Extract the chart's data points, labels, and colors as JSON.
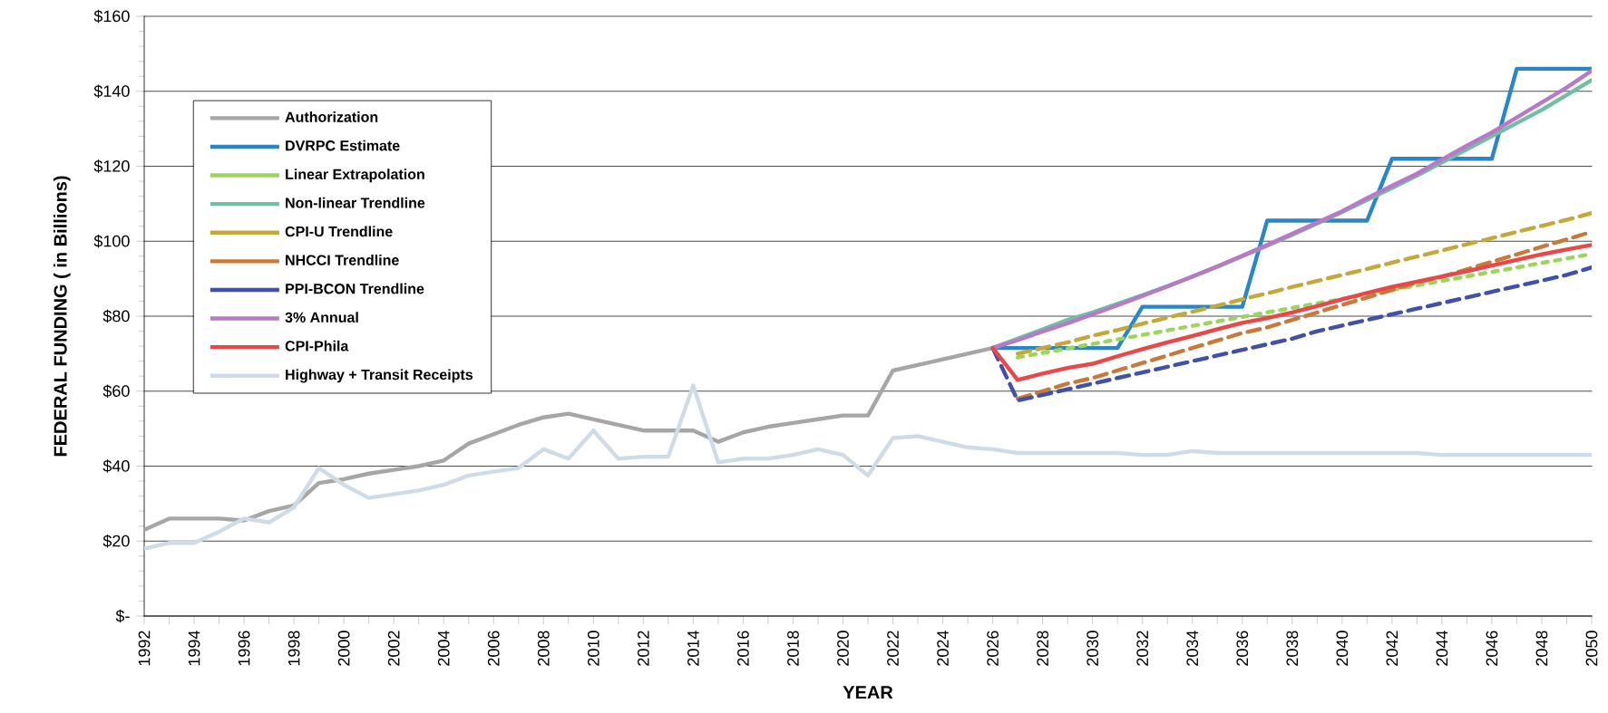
{
  "chart_data": {
    "type": "line",
    "xlabel": "YEAR",
    "ylabel": "FEDERAL FUNDING ( in Billions)",
    "x": [
      1992,
      1993,
      1994,
      1995,
      1996,
      1997,
      1998,
      1999,
      2000,
      2001,
      2002,
      2003,
      2004,
      2005,
      2006,
      2007,
      2008,
      2009,
      2010,
      2011,
      2012,
      2013,
      2014,
      2015,
      2016,
      2017,
      2018,
      2019,
      2020,
      2021,
      2022,
      2023,
      2024,
      2025,
      2026,
      2027,
      2028,
      2029,
      2030,
      2031,
      2032,
      2033,
      2034,
      2035,
      2036,
      2037,
      2038,
      2039,
      2040,
      2041,
      2042,
      2043,
      2044,
      2045,
      2046,
      2047,
      2048,
      2049,
      2050
    ],
    "xlim": [
      1992,
      2050
    ],
    "xticks": [
      1992,
      {
        "value": 1993,
        "label": null
      },
      1994,
      {
        "value": 1995,
        "label": null
      },
      1996,
      {
        "value": 1997,
        "label": null
      },
      1998,
      {
        "value": 1999,
        "label": null
      },
      2000,
      {
        "value": 2001,
        "label": null
      },
      2002,
      {
        "value": 2003,
        "label": null
      },
      2004,
      {
        "value": 2005,
        "label": null
      },
      2006,
      {
        "value": 2007,
        "label": null
      },
      2008,
      {
        "value": 2009,
        "label": null
      },
      2010,
      {
        "value": 2011,
        "label": null
      },
      2012,
      {
        "value": 2013,
        "label": null
      },
      2014,
      {
        "value": 2015,
        "label": null
      },
      2016,
      {
        "value": 2017,
        "label": null
      },
      2018,
      {
        "value": 2019,
        "label": null
      },
      2020,
      {
        "value": 2021,
        "label": null
      },
      2022,
      {
        "value": 2023,
        "label": null
      },
      2024,
      {
        "value": 2025,
        "label": null
      },
      2026,
      {
        "value": 2027,
        "label": null
      },
      2028,
      {
        "value": 2029,
        "label": null
      },
      2030,
      {
        "value": 2031,
        "label": null
      },
      2032,
      {
        "value": 2033,
        "label": null
      },
      2034,
      {
        "value": 2035,
        "label": null
      },
      2036,
      {
        "value": 2037,
        "label": null
      },
      2038,
      {
        "value": 2039,
        "label": null
      },
      2040,
      {
        "value": 2041,
        "label": null
      },
      2042,
      {
        "value": 2043,
        "label": null
      },
      2044,
      {
        "value": 2045,
        "label": null
      },
      2046,
      {
        "value": 2047,
        "label": null
      },
      2048,
      {
        "value": 2049,
        "label": null
      },
      2050
    ],
    "ylim": [
      0,
      160
    ],
    "yticks": [
      {
        "value": 0,
        "label": "$-"
      },
      {
        "value": 20,
        "label": "$20"
      },
      {
        "value": 40,
        "label": "$40"
      },
      {
        "value": 60,
        "label": "$60"
      },
      {
        "value": 80,
        "label": "$80"
      },
      {
        "value": 100,
        "label": "$100"
      },
      {
        "value": 120,
        "label": "$120"
      },
      {
        "value": 140,
        "label": "$140"
      },
      {
        "value": 160,
        "label": "$160"
      }
    ],
    "grid": "y",
    "legend": "top left",
    "series": [
      {
        "name": "Authorization",
        "color": "#a6a6a6",
        "line_style": "solid",
        "values": [
          23,
          26,
          26,
          26,
          25.5,
          28,
          29.5,
          35.5,
          36.5,
          38,
          39,
          40,
          41.5,
          46,
          48.5,
          51,
          53,
          54,
          52.5,
          51,
          49.5,
          49.5,
          49.5,
          46.5,
          49,
          50.5,
          51.5,
          52.5,
          53.5,
          53.5,
          65.5,
          67,
          68.5,
          70,
          71.5,
          null,
          null,
          null,
          null,
          null,
          null,
          null,
          null,
          null,
          null,
          null,
          null,
          null,
          null,
          null,
          null,
          null,
          null,
          null,
          null,
          null,
          null,
          null,
          null
        ]
      },
      {
        "name": "DVRPC Estimate",
        "color": "#2986c8",
        "line_style": "solid",
        "values": [
          null,
          null,
          null,
          null,
          null,
          null,
          null,
          null,
          null,
          null,
          null,
          null,
          null,
          null,
          null,
          null,
          null,
          null,
          null,
          null,
          null,
          null,
          null,
          null,
          null,
          null,
          null,
          null,
          null,
          null,
          null,
          null,
          null,
          null,
          71.5,
          71.5,
          71.5,
          71.5,
          71.5,
          71.5,
          82.5,
          82.5,
          82.5,
          82.5,
          82.5,
          105.5,
          105.5,
          105.5,
          105.5,
          105.5,
          122,
          122,
          122,
          122,
          122,
          146,
          146,
          146,
          146
        ]
      },
      {
        "name": "Linear Extrapolation",
        "color": "#9bd65a",
        "line_style": "dotted",
        "values": [
          null,
          null,
          null,
          null,
          null,
          null,
          null,
          null,
          null,
          null,
          null,
          null,
          null,
          null,
          null,
          null,
          null,
          null,
          null,
          null,
          null,
          null,
          null,
          null,
          null,
          null,
          null,
          null,
          null,
          null,
          null,
          null,
          null,
          null,
          null,
          69,
          70.2,
          71.4,
          72.6,
          73.8,
          75,
          76.2,
          77.4,
          78.6,
          79.8,
          81,
          82.2,
          83.4,
          84.6,
          85.8,
          87,
          88.2,
          89.4,
          90.6,
          91.8,
          93,
          94.2,
          95.4,
          96.6
        ]
      },
      {
        "name": "Non-linear Trendline",
        "color": "#6fbfa0",
        "line_style": "solid",
        "values": [
          null,
          null,
          null,
          null,
          null,
          null,
          null,
          null,
          null,
          null,
          null,
          null,
          null,
          null,
          null,
          null,
          null,
          null,
          null,
          null,
          null,
          null,
          null,
          null,
          null,
          null,
          null,
          null,
          null,
          null,
          null,
          null,
          null,
          null,
          71.5,
          74,
          76.5,
          79,
          81,
          83.3,
          85.6,
          88,
          90.5,
          93.2,
          96,
          98.8,
          101.7,
          104.7,
          107.8,
          111,
          114.2,
          117.5,
          121,
          124.5,
          128,
          131.5,
          135,
          139,
          143
        ]
      },
      {
        "name": "CPI-U Trendline",
        "color": "#c4a83a",
        "line_style": "dashed",
        "values": [
          null,
          null,
          null,
          null,
          null,
          null,
          null,
          null,
          null,
          null,
          null,
          null,
          null,
          null,
          null,
          null,
          null,
          null,
          null,
          null,
          null,
          null,
          null,
          null,
          null,
          null,
          null,
          null,
          null,
          null,
          null,
          null,
          null,
          null,
          null,
          70,
          71.5,
          73,
          74.8,
          76.3,
          78,
          79.6,
          81.2,
          82.8,
          84.5,
          86.1,
          87.8,
          89.4,
          91,
          92.6,
          94.3,
          95.9,
          97.5,
          99.2,
          100.8,
          102.5,
          104.1,
          105.7,
          107.5
        ]
      },
      {
        "name": "NHCCI Trendline",
        "color": "#c87a3c",
        "line_style": "dashed",
        "values": [
          null,
          null,
          null,
          null,
          null,
          null,
          null,
          null,
          null,
          null,
          null,
          null,
          null,
          null,
          null,
          null,
          null,
          null,
          null,
          null,
          null,
          null,
          null,
          null,
          null,
          null,
          null,
          null,
          null,
          null,
          null,
          null,
          null,
          null,
          null,
          58,
          60,
          62,
          63.5,
          65.5,
          67.5,
          69.5,
          71.5,
          73.5,
          75.5,
          77,
          79,
          81,
          83,
          85,
          87,
          89,
          90.5,
          92.5,
          94.5,
          96.5,
          98.5,
          100.5,
          102.5
        ]
      },
      {
        "name": "PPI-BCON Trendline",
        "color": "#4150a8",
        "line_style": "dashed",
        "values": [
          null,
          null,
          null,
          null,
          null,
          null,
          null,
          null,
          null,
          null,
          null,
          null,
          null,
          null,
          null,
          null,
          null,
          null,
          null,
          null,
          null,
          null,
          null,
          null,
          null,
          null,
          null,
          null,
          null,
          null,
          null,
          null,
          null,
          null,
          71.5,
          57.5,
          59,
          60.5,
          62,
          63.5,
          65,
          66.5,
          68,
          69.5,
          71,
          72.5,
          74,
          76,
          77.5,
          79,
          80.5,
          82,
          83.5,
          85,
          86.5,
          88,
          89.5,
          91,
          93
        ]
      },
      {
        "name": "3% Annual",
        "color": "#b879c8",
        "line_style": "solid",
        "values": [
          null,
          null,
          null,
          null,
          null,
          null,
          null,
          null,
          null,
          null,
          null,
          null,
          null,
          null,
          null,
          null,
          null,
          null,
          null,
          null,
          null,
          null,
          null,
          null,
          null,
          null,
          null,
          null,
          null,
          null,
          null,
          null,
          null,
          null,
          71.5,
          73.6,
          75.9,
          78.1,
          80.5,
          82.9,
          85.4,
          87.9,
          90.6,
          93.3,
          96.1,
          99,
          102,
          105,
          108,
          111.5,
          114.8,
          118,
          121.8,
          125.5,
          129,
          133,
          137,
          141,
          145.5
        ]
      },
      {
        "name": "CPI-Phila",
        "color": "#e84848",
        "line_style": "solid",
        "values": [
          null,
          null,
          null,
          null,
          null,
          null,
          null,
          null,
          null,
          null,
          null,
          null,
          null,
          null,
          null,
          null,
          null,
          null,
          null,
          null,
          null,
          null,
          null,
          null,
          null,
          null,
          null,
          null,
          null,
          null,
          null,
          null,
          null,
          null,
          71.5,
          63,
          64.7,
          66.2,
          67.3,
          69.3,
          71.2,
          73,
          74.7,
          76.5,
          78.2,
          79.5,
          81,
          82.7,
          84.5,
          86.2,
          87.8,
          89.2,
          90.6,
          92,
          93.5,
          95,
          96.5,
          97.8,
          99
        ]
      },
      {
        "name": "Highway + Transit Receipts",
        "color": "#cfdce8",
        "line_style": "solid",
        "values": [
          18,
          19.5,
          19.5,
          22.5,
          26,
          25,
          29,
          39.5,
          35,
          31.5,
          32.5,
          33.5,
          35,
          37.5,
          38.5,
          39.5,
          44.5,
          42,
          49.5,
          42,
          42.5,
          42.5,
          61.5,
          41,
          42,
          42,
          43,
          44.5,
          43,
          37.5,
          47.5,
          48,
          46.5,
          45,
          44.5,
          43.5,
          43.5,
          43.5,
          43.5,
          43.5,
          43,
          43,
          44,
          43.5,
          43.5,
          43.5,
          43.5,
          43.5,
          43.5,
          43.5,
          43.5,
          43.5,
          43,
          43,
          43,
          43,
          43,
          43,
          43
        ]
      }
    ]
  }
}
